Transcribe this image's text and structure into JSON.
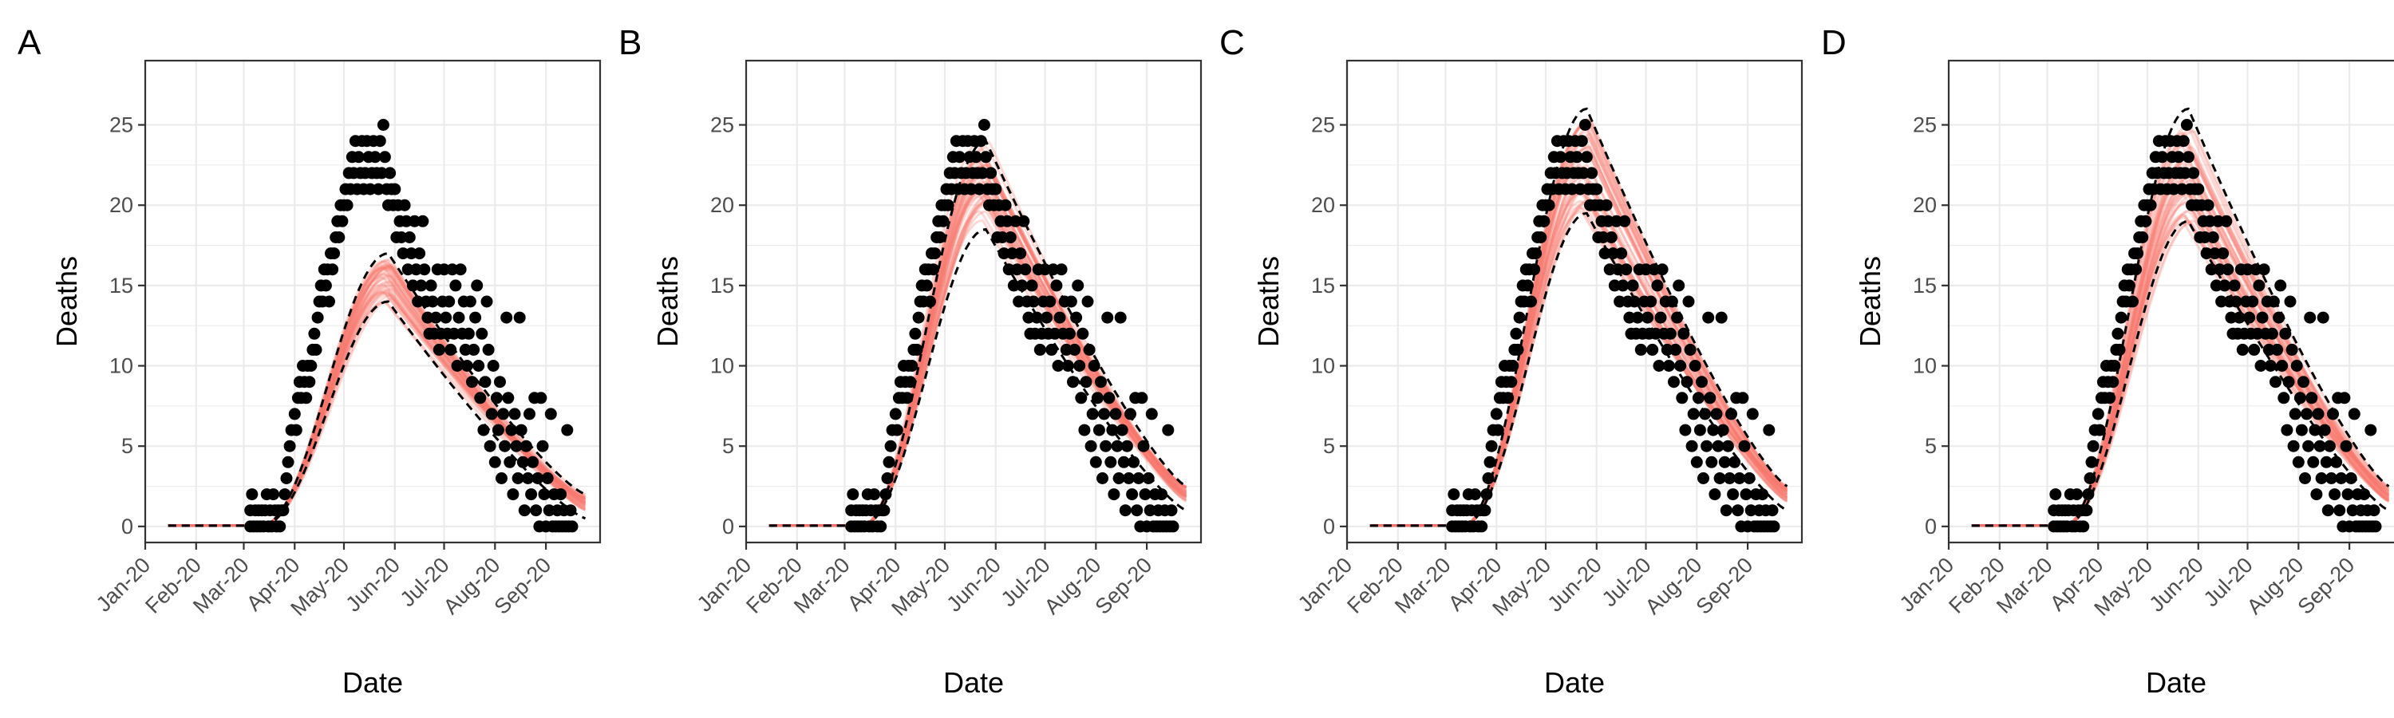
{
  "figure": {
    "background": "#ffffff"
  },
  "chart_data": [
    {
      "panel": "A",
      "type": "scatter",
      "xlabel": "Date",
      "ylabel": "Deaths",
      "x_ticks": [
        "Jan-20",
        "Feb-20",
        "Mar-20",
        "Apr-20",
        "May-20",
        "Jun-20",
        "Jul-20",
        "Aug-20",
        "Sep-20"
      ],
      "y_ticks": [
        0,
        5,
        10,
        15,
        20,
        25
      ],
      "ylim": [
        -1,
        29
      ],
      "xlim": [
        "2020-01-01",
        "2020-10-04"
      ],
      "grid": true,
      "colors": {
        "points": "#000000",
        "fit": "#f8766d",
        "ribbon": "#000000"
      },
      "peak_fit": 15.3,
      "peak_date": "2020-05-28",
      "band_lo": 14.0,
      "band_hi": 17.0,
      "decline_end": 1.0
    },
    {
      "panel": "B",
      "type": "scatter",
      "xlabel": "Date",
      "ylabel": "Deaths",
      "x_ticks": [
        "Jan-20",
        "Feb-20",
        "Mar-20",
        "Apr-20",
        "May-20",
        "Jun-20",
        "Jul-20",
        "Aug-20",
        "Sep-20"
      ],
      "y_ticks": [
        0,
        5,
        10,
        15,
        20,
        25
      ],
      "ylim": [
        -1,
        29
      ],
      "xlim": [
        "2020-01-01",
        "2020-10-04"
      ],
      "grid": true,
      "colors": {
        "points": "#000000",
        "fit": "#f8766d",
        "ribbon": "#000000"
      },
      "peak_fit": 21.5,
      "peak_date": "2020-05-26",
      "band_lo": 18.5,
      "band_hi": 24.0,
      "decline_end": 1.5
    },
    {
      "panel": "C",
      "type": "scatter",
      "xlabel": "Date",
      "ylabel": "Deaths",
      "x_ticks": [
        "Jan-20",
        "Feb-20",
        "Mar-20",
        "Apr-20",
        "May-20",
        "Jun-20",
        "Jul-20",
        "Aug-20",
        "Sep-20"
      ],
      "y_ticks": [
        0,
        5,
        10,
        15,
        20,
        25
      ],
      "ylim": [
        -1,
        29
      ],
      "xlim": [
        "2020-01-01",
        "2020-10-04"
      ],
      "grid": true,
      "colors": {
        "points": "#000000",
        "fit": "#f8766d",
        "ribbon": "#000000"
      },
      "peak_fit": 22.5,
      "peak_date": "2020-05-26",
      "band_lo": 19.5,
      "band_hi": 26.0,
      "decline_end": 1.5
    },
    {
      "panel": "D",
      "type": "scatter",
      "xlabel": "Date",
      "ylabel": "Deaths",
      "x_ticks": [
        "Jan-20",
        "Feb-20",
        "Mar-20",
        "Apr-20",
        "May-20",
        "Jun-20",
        "Jul-20",
        "Aug-20",
        "Sep-20"
      ],
      "y_ticks": [
        0,
        5,
        10,
        15,
        20,
        25
      ],
      "ylim": [
        -1,
        29
      ],
      "xlim": [
        "2020-01-01",
        "2020-10-04"
      ],
      "grid": true,
      "colors": {
        "points": "#000000",
        "fit": "#f8766d",
        "ribbon": "#000000"
      },
      "peak_fit": 22.0,
      "peak_date": "2020-05-26",
      "band_lo": 19.0,
      "band_hi": 26.0,
      "decline_end": 1.5
    }
  ],
  "observed_deaths": [
    {
      "date": "2020-03-05",
      "y": 0
    },
    {
      "date": "2020-03-05",
      "y": 1
    },
    {
      "date": "2020-03-06",
      "y": 2
    },
    {
      "date": "2020-03-07",
      "y": 0
    },
    {
      "date": "2020-03-08",
      "y": 1
    },
    {
      "date": "2020-03-09",
      "y": 0
    },
    {
      "date": "2020-03-10",
      "y": 1
    },
    {
      "date": "2020-03-11",
      "y": 0
    },
    {
      "date": "2020-03-12",
      "y": 1
    },
    {
      "date": "2020-03-13",
      "y": 0
    },
    {
      "date": "2020-03-14",
      "y": 1
    },
    {
      "date": "2020-03-15",
      "y": 2
    },
    {
      "date": "2020-03-16",
      "y": 0
    },
    {
      "date": "2020-03-17",
      "y": 1
    },
    {
      "date": "2020-03-18",
      "y": 0
    },
    {
      "date": "2020-03-19",
      "y": 2
    },
    {
      "date": "2020-03-20",
      "y": 1
    },
    {
      "date": "2020-03-21",
      "y": 0
    },
    {
      "date": "2020-03-22",
      "y": 1
    },
    {
      "date": "2020-03-23",
      "y": 0
    },
    {
      "date": "2020-03-24",
      "y": 1
    },
    {
      "date": "2020-03-25",
      "y": 1
    },
    {
      "date": "2020-03-26",
      "y": 2
    },
    {
      "date": "2020-03-27",
      "y": 3
    },
    {
      "date": "2020-03-28",
      "y": 4
    },
    {
      "date": "2020-03-29",
      "y": 5
    },
    {
      "date": "2020-03-30",
      "y": 6
    },
    {
      "date": "2020-04-01",
      "y": 7
    },
    {
      "date": "2020-04-02",
      "y": 6
    },
    {
      "date": "2020-04-03",
      "y": 8
    },
    {
      "date": "2020-04-04",
      "y": 9
    },
    {
      "date": "2020-04-05",
      "y": 8
    },
    {
      "date": "2020-04-06",
      "y": 10
    },
    {
      "date": "2020-04-07",
      "y": 9
    },
    {
      "date": "2020-04-08",
      "y": 8
    },
    {
      "date": "2020-04-09",
      "y": 10
    },
    {
      "date": "2020-04-10",
      "y": 9
    },
    {
      "date": "2020-04-11",
      "y": 10
    },
    {
      "date": "2020-04-12",
      "y": 11
    },
    {
      "date": "2020-04-13",
      "y": 12
    },
    {
      "date": "2020-04-14",
      "y": 11
    },
    {
      "date": "2020-04-15",
      "y": 13
    },
    {
      "date": "2020-04-16",
      "y": 14
    },
    {
      "date": "2020-04-17",
      "y": 15
    },
    {
      "date": "2020-04-18",
      "y": 14
    },
    {
      "date": "2020-04-19",
      "y": 16
    },
    {
      "date": "2020-04-20",
      "y": 15
    },
    {
      "date": "2020-04-21",
      "y": 16
    },
    {
      "date": "2020-04-22",
      "y": 14
    },
    {
      "date": "2020-04-23",
      "y": 17
    },
    {
      "date": "2020-04-24",
      "y": 16
    },
    {
      "date": "2020-04-25",
      "y": 17
    },
    {
      "date": "2020-04-26",
      "y": 18
    },
    {
      "date": "2020-04-27",
      "y": 19
    },
    {
      "date": "2020-04-28",
      "y": 18
    },
    {
      "date": "2020-04-29",
      "y": 20
    },
    {
      "date": "2020-04-30",
      "y": 19
    },
    {
      "date": "2020-05-01",
      "y": 20
    },
    {
      "date": "2020-05-02",
      "y": 21
    },
    {
      "date": "2020-05-03",
      "y": 20
    },
    {
      "date": "2020-05-04",
      "y": 22
    },
    {
      "date": "2020-05-05",
      "y": 21
    },
    {
      "date": "2020-05-06",
      "y": 23
    },
    {
      "date": "2020-05-07",
      "y": 22
    },
    {
      "date": "2020-05-08",
      "y": 24
    },
    {
      "date": "2020-05-09",
      "y": 21
    },
    {
      "date": "2020-05-10",
      "y": 23
    },
    {
      "date": "2020-05-11",
      "y": 22
    },
    {
      "date": "2020-05-12",
      "y": 24
    },
    {
      "date": "2020-05-13",
      "y": 21
    },
    {
      "date": "2020-05-14",
      "y": 22
    },
    {
      "date": "2020-05-15",
      "y": 24
    },
    {
      "date": "2020-05-16",
      "y": 23
    },
    {
      "date": "2020-05-17",
      "y": 21
    },
    {
      "date": "2020-05-18",
      "y": 22
    },
    {
      "date": "2020-05-19",
      "y": 24
    },
    {
      "date": "2020-05-20",
      "y": 23
    },
    {
      "date": "2020-05-21",
      "y": 22
    },
    {
      "date": "2020-05-22",
      "y": 21
    },
    {
      "date": "2020-05-23",
      "y": 24
    },
    {
      "date": "2020-05-24",
      "y": 22
    },
    {
      "date": "2020-05-25",
      "y": 25
    },
    {
      "date": "2020-05-26",
      "y": 23
    },
    {
      "date": "2020-05-27",
      "y": 21
    },
    {
      "date": "2020-05-28",
      "y": 20
    },
    {
      "date": "2020-05-29",
      "y": 22
    },
    {
      "date": "2020-05-30",
      "y": 21
    },
    {
      "date": "2020-05-31",
      "y": 20
    },
    {
      "date": "2020-06-01",
      "y": 21
    },
    {
      "date": "2020-06-02",
      "y": 18
    },
    {
      "date": "2020-06-03",
      "y": 20
    },
    {
      "date": "2020-06-04",
      "y": 19
    },
    {
      "date": "2020-06-05",
      "y": 18
    },
    {
      "date": "2020-06-06",
      "y": 17
    },
    {
      "date": "2020-06-07",
      "y": 20
    },
    {
      "date": "2020-06-08",
      "y": 19
    },
    {
      "date": "2020-06-09",
      "y": 16
    },
    {
      "date": "2020-06-10",
      "y": 18
    },
    {
      "date": "2020-06-11",
      "y": 17
    },
    {
      "date": "2020-06-12",
      "y": 15
    },
    {
      "date": "2020-06-13",
      "y": 19
    },
    {
      "date": "2020-06-14",
      "y": 16
    },
    {
      "date": "2020-06-15",
      "y": 14
    },
    {
      "date": "2020-06-16",
      "y": 17
    },
    {
      "date": "2020-06-17",
      "y": 15
    },
    {
      "date": "2020-06-18",
      "y": 19
    },
    {
      "date": "2020-06-19",
      "y": 16
    },
    {
      "date": "2020-06-20",
      "y": 14
    },
    {
      "date": "2020-06-21",
      "y": 13
    },
    {
      "date": "2020-06-22",
      "y": 12
    },
    {
      "date": "2020-06-23",
      "y": 15
    },
    {
      "date": "2020-06-24",
      "y": 14
    },
    {
      "date": "2020-06-25",
      "y": 12
    },
    {
      "date": "2020-06-26",
      "y": 13
    },
    {
      "date": "2020-06-27",
      "y": 16
    },
    {
      "date": "2020-06-28",
      "y": 11
    },
    {
      "date": "2020-06-29",
      "y": 12
    },
    {
      "date": "2020-06-30",
      "y": 14
    },
    {
      "date": "2020-07-01",
      "y": 16
    },
    {
      "date": "2020-07-02",
      "y": 13
    },
    {
      "date": "2020-07-03",
      "y": 12
    },
    {
      "date": "2020-07-04",
      "y": 14
    },
    {
      "date": "2020-07-05",
      "y": 11
    },
    {
      "date": "2020-07-06",
      "y": 16
    },
    {
      "date": "2020-07-07",
      "y": 12
    },
    {
      "date": "2020-07-08",
      "y": 15
    },
    {
      "date": "2020-07-09",
      "y": 10
    },
    {
      "date": "2020-07-10",
      "y": 13
    },
    {
      "date": "2020-07-11",
      "y": 16
    },
    {
      "date": "2020-07-12",
      "y": 12
    },
    {
      "date": "2020-07-13",
      "y": 14
    },
    {
      "date": "2020-07-14",
      "y": 11
    },
    {
      "date": "2020-07-15",
      "y": 10
    },
    {
      "date": "2020-07-16",
      "y": 12
    },
    {
      "date": "2020-07-17",
      "y": 14
    },
    {
      "date": "2020-07-18",
      "y": 9
    },
    {
      "date": "2020-07-19",
      "y": 11
    },
    {
      "date": "2020-07-20",
      "y": 13
    },
    {
      "date": "2020-07-21",
      "y": 15
    },
    {
      "date": "2020-07-22",
      "y": 10
    },
    {
      "date": "2020-07-23",
      "y": 8
    },
    {
      "date": "2020-07-24",
      "y": 12
    },
    {
      "date": "2020-07-25",
      "y": 6
    },
    {
      "date": "2020-07-26",
      "y": 9
    },
    {
      "date": "2020-07-27",
      "y": 14
    },
    {
      "date": "2020-07-28",
      "y": 11
    },
    {
      "date": "2020-07-29",
      "y": 5
    },
    {
      "date": "2020-07-30",
      "y": 7
    },
    {
      "date": "2020-07-31",
      "y": 10
    },
    {
      "date": "2020-08-01",
      "y": 4
    },
    {
      "date": "2020-08-02",
      "y": 8
    },
    {
      "date": "2020-08-03",
      "y": 6
    },
    {
      "date": "2020-08-04",
      "y": 9
    },
    {
      "date": "2020-08-05",
      "y": 3
    },
    {
      "date": "2020-08-06",
      "y": 7
    },
    {
      "date": "2020-08-07",
      "y": 5
    },
    {
      "date": "2020-08-08",
      "y": 13
    },
    {
      "date": "2020-08-09",
      "y": 8
    },
    {
      "date": "2020-08-10",
      "y": 4
    },
    {
      "date": "2020-08-11",
      "y": 6
    },
    {
      "date": "2020-08-12",
      "y": 2
    },
    {
      "date": "2020-08-13",
      "y": 7
    },
    {
      "date": "2020-08-14",
      "y": 5
    },
    {
      "date": "2020-08-15",
      "y": 3
    },
    {
      "date": "2020-08-16",
      "y": 13
    },
    {
      "date": "2020-08-17",
      "y": 6
    },
    {
      "date": "2020-08-18",
      "y": 4
    },
    {
      "date": "2020-08-19",
      "y": 1
    },
    {
      "date": "2020-08-20",
      "y": 5
    },
    {
      "date": "2020-08-21",
      "y": 3
    },
    {
      "date": "2020-08-22",
      "y": 7
    },
    {
      "date": "2020-08-23",
      "y": 2
    },
    {
      "date": "2020-08-24",
      "y": 4
    },
    {
      "date": "2020-08-25",
      "y": 8
    },
    {
      "date": "2020-08-26",
      "y": 1
    },
    {
      "date": "2020-08-27",
      "y": 3
    },
    {
      "date": "2020-08-28",
      "y": 0
    },
    {
      "date": "2020-08-29",
      "y": 8
    },
    {
      "date": "2020-08-30",
      "y": 5
    },
    {
      "date": "2020-08-31",
      "y": 2
    },
    {
      "date": "2020-09-01",
      "y": 0
    },
    {
      "date": "2020-09-02",
      "y": 3
    },
    {
      "date": "2020-09-03",
      "y": 1
    },
    {
      "date": "2020-09-04",
      "y": 7
    },
    {
      "date": "2020-09-05",
      "y": 0
    },
    {
      "date": "2020-09-06",
      "y": 2
    },
    {
      "date": "2020-09-07",
      "y": 0
    },
    {
      "date": "2020-09-08",
      "y": 1
    },
    {
      "date": "2020-09-09",
      "y": 0
    },
    {
      "date": "2020-09-10",
      "y": 2
    },
    {
      "date": "2020-09-11",
      "y": 0
    },
    {
      "date": "2020-09-12",
      "y": 1
    },
    {
      "date": "2020-09-13",
      "y": 0
    },
    {
      "date": "2020-09-14",
      "y": 6
    },
    {
      "date": "2020-09-15",
      "y": 0
    },
    {
      "date": "2020-09-16",
      "y": 1
    },
    {
      "date": "2020-09-17",
      "y": 0
    }
  ]
}
